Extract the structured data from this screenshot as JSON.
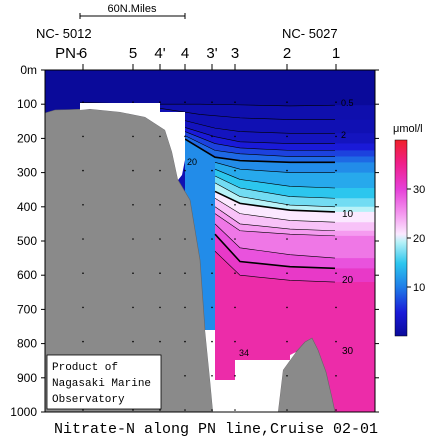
{
  "chart_data": {
    "type": "heatmap",
    "title": "Nitrate-N along PN line,Cruise 02-01",
    "scale_bar": "60N.Miles",
    "ship_ids": {
      "left": "NC- 5012",
      "right": "NC- 5027"
    },
    "stations": [
      "PN- 6",
      "5",
      "4'",
      "4",
      "3'",
      "3",
      "2",
      "1"
    ],
    "ylabel": "",
    "ylim": [
      0,
      1000
    ],
    "y_ticks": [
      "0m",
      "100",
      "200",
      "300",
      "400",
      "500",
      "600",
      "700",
      "800",
      "900",
      "1000"
    ],
    "colorbar": {
      "unit": "μmol/l",
      "range": [
        0,
        40
      ],
      "ticks": [
        10,
        20,
        30
      ],
      "tick_labels": [
        "10",
        "20",
        "30"
      ]
    },
    "contour_labels": [
      "0.5",
      "2",
      "10",
      "20",
      "30",
      "20",
      "34"
    ],
    "isolines": [
      {
        "value": 0.5,
        "label": "0.5",
        "bold": false,
        "points": [
          [
            80,
            95
          ],
          [
            150,
            100
          ],
          [
            200,
            100
          ],
          [
            240,
            102
          ],
          [
            290,
            105
          ],
          [
            335,
            103
          ]
        ]
      },
      {
        "value": 1,
        "label": "",
        "bold": false,
        "points": [
          [
            160,
            112
          ],
          [
            200,
            130
          ],
          [
            240,
            140
          ],
          [
            290,
            145
          ],
          [
            335,
            145
          ]
        ]
      },
      {
        "value": 2,
        "label": "2",
        "bold": false,
        "points": [
          [
            185,
            148
          ],
          [
            215,
            170
          ],
          [
            240,
            180
          ],
          [
            290,
            185
          ],
          [
            335,
            185
          ]
        ]
      },
      {
        "value": 4,
        "label": "",
        "bold": false,
        "points": [
          [
            185,
            168
          ],
          [
            215,
            195
          ],
          [
            240,
            210
          ],
          [
            290,
            215
          ],
          [
            335,
            215
          ]
        ]
      },
      {
        "value": 6,
        "label": "",
        "bold": false,
        "points": [
          [
            185,
            180
          ],
          [
            215,
            215
          ],
          [
            240,
            228
          ],
          [
            290,
            235
          ],
          [
            335,
            235
          ]
        ]
      },
      {
        "value": 8,
        "label": "",
        "bold": false,
        "points": [
          [
            185,
            192
          ],
          [
            215,
            235
          ],
          [
            240,
            245
          ],
          [
            290,
            253
          ],
          [
            335,
            253
          ]
        ]
      },
      {
        "value": 10,
        "label": "10",
        "bold": true,
        "points": [
          [
            185,
            202
          ],
          [
            215,
            255
          ],
          [
            240,
            265
          ],
          [
            290,
            270
          ],
          [
            335,
            270
          ]
        ]
      },
      {
        "value": 12,
        "label": "",
        "bold": false,
        "points": [
          [
            215,
            270
          ],
          [
            240,
            290
          ],
          [
            290,
            300
          ],
          [
            335,
            300
          ]
        ]
      },
      {
        "value": 14,
        "label": "",
        "bold": false,
        "points": [
          [
            215,
            290
          ],
          [
            240,
            320
          ],
          [
            290,
            340
          ],
          [
            335,
            345
          ]
        ]
      },
      {
        "value": 16,
        "label": "",
        "bold": false,
        "points": [
          [
            215,
            310
          ],
          [
            240,
            345
          ],
          [
            290,
            370
          ],
          [
            335,
            375
          ]
        ]
      },
      {
        "value": 18,
        "label": "",
        "bold": false,
        "points": [
          [
            215,
            330
          ],
          [
            240,
            370
          ],
          [
            290,
            395
          ],
          [
            335,
            400
          ]
        ]
      },
      {
        "value": 20,
        "label": "20",
        "bold": true,
        "points": [
          [
            215,
            355
          ],
          [
            240,
            390
          ],
          [
            290,
            410
          ],
          [
            335,
            415
          ]
        ]
      },
      {
        "value": 22,
        "label": "",
        "bold": false,
        "points": [
          [
            215,
            375
          ],
          [
            240,
            420
          ],
          [
            290,
            440
          ],
          [
            335,
            445
          ]
        ]
      },
      {
        "value": 24,
        "label": "",
        "bold": false,
        "points": [
          [
            215,
            400
          ],
          [
            240,
            450
          ],
          [
            290,
            465
          ],
          [
            335,
            470
          ]
        ]
      },
      {
        "value": 26,
        "label": "",
        "bold": false,
        "points": [
          [
            215,
            420
          ],
          [
            240,
            470
          ],
          [
            290,
            480
          ],
          [
            335,
            485
          ]
        ]
      },
      {
        "value": 28,
        "label": "",
        "bold": false,
        "points": [
          [
            215,
            450
          ],
          [
            240,
            520
          ],
          [
            290,
            540
          ],
          [
            335,
            550
          ]
        ]
      },
      {
        "value": 30,
        "label": "30",
        "bold": true,
        "points": [
          [
            215,
            480
          ],
          [
            240,
            560
          ],
          [
            290,
            575
          ],
          [
            335,
            580
          ]
        ]
      },
      {
        "value": 32,
        "label": "",
        "bold": false,
        "points": [
          [
            215,
            530
          ],
          [
            240,
            600
          ],
          [
            290,
            615
          ],
          [
            335,
            620
          ]
        ]
      }
    ],
    "colors": {
      "surface": "#1010c8",
      "deep": "#f0107a",
      "bathymetry": "#8a8a8a"
    }
  },
  "annotation": {
    "credit_lines": [
      "Product of",
      "Nagasaki Marine",
      "Observatory"
    ]
  }
}
